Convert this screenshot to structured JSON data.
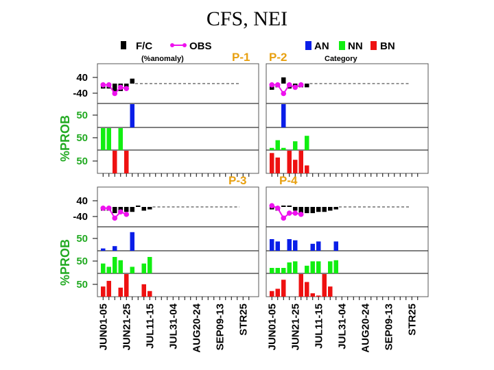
{
  "title": "CFS, NEI",
  "legend": {
    "fc_label": "F/C",
    "obs_label": "OBS",
    "anomaly_note": "(%anomaly)",
    "an_label": "AN",
    "nn_label": "NN",
    "bn_label": "BN",
    "category_note": "Category"
  },
  "colors": {
    "fc": "#000000",
    "obs": "#ee11ee",
    "an": "#0a1ee8",
    "nn": "#11ee11",
    "bn": "#ee1111",
    "period_label": "#e8a010",
    "ylabel": "#22aa22"
  },
  "ylabel": "%PROB",
  "anomaly_ticks": [
    "40",
    "-40"
  ],
  "prob_tick": "50",
  "x_labels": [
    "JUN01-05",
    "JUN21-25",
    "JUL11-15",
    "JUL31-04",
    "AUG20-24",
    "SEP09-13",
    "STR25"
  ],
  "chart_data": {
    "type": "bar",
    "title": "CFS, NEI",
    "n_pentads": 26,
    "anomaly_ylim": [
      -80,
      80
    ],
    "prob_ylim": [
      0,
      100
    ],
    "panels": [
      {
        "name": "P-1",
        "fc_anomaly": [
          -20,
          -20,
          -40,
          -30,
          -20,
          20
        ],
        "obs_anomaly": [
          -5,
          -5,
          -40,
          -15,
          -20
        ],
        "an": [
          0,
          0,
          0,
          0,
          0,
          100
        ],
        "nn": [
          100,
          100,
          0,
          100,
          0,
          0
        ],
        "bn": [
          0,
          0,
          100,
          0,
          100,
          0
        ]
      },
      {
        "name": "P-2",
        "fc_anomaly": [
          -25,
          -15,
          25,
          -20,
          -15,
          -15,
          -15
        ],
        "obs_anomaly": [
          -5,
          -5,
          -40,
          -5,
          -15,
          -5
        ],
        "an": [
          0,
          0,
          100,
          0,
          0,
          0,
          0
        ],
        "nn": [
          10,
          45,
          10,
          0,
          40,
          0,
          65
        ],
        "bn": [
          90,
          70,
          0,
          100,
          60,
          100,
          35
        ]
      },
      {
        "name": "P-3",
        "fc_anomaly": [
          -15,
          -15,
          -25,
          -25,
          -20,
          -20,
          5,
          -15,
          -10
        ],
        "obs_anomaly": [
          -5,
          -5,
          -45,
          -20,
          -30
        ],
        "an": [
          10,
          0,
          20,
          0,
          0,
          80,
          0,
          0,
          0
        ],
        "nn": [
          45,
          30,
          75,
          60,
          0,
          30,
          0,
          45,
          75
        ],
        "bn": [
          45,
          70,
          0,
          40,
          100,
          0,
          0,
          55,
          25
        ]
      },
      {
        "name": "P-4",
        "fc_anomaly": [
          -10,
          -15,
          5,
          5,
          -15,
          -25,
          -25,
          -25,
          -20,
          -20,
          -15,
          -10
        ],
        "obs_anomaly": [
          5,
          -5,
          -45,
          -25,
          -25,
          -30
        ],
        "an": [
          50,
          40,
          0,
          50,
          45,
          0,
          0,
          30,
          40,
          0,
          0,
          40
        ],
        "nn": [
          25,
          25,
          25,
          50,
          55,
          0,
          35,
          55,
          55,
          0,
          55,
          60
        ],
        "bn": [
          25,
          35,
          75,
          0,
          0,
          100,
          65,
          15,
          5,
          100,
          45,
          0
        ]
      }
    ]
  }
}
